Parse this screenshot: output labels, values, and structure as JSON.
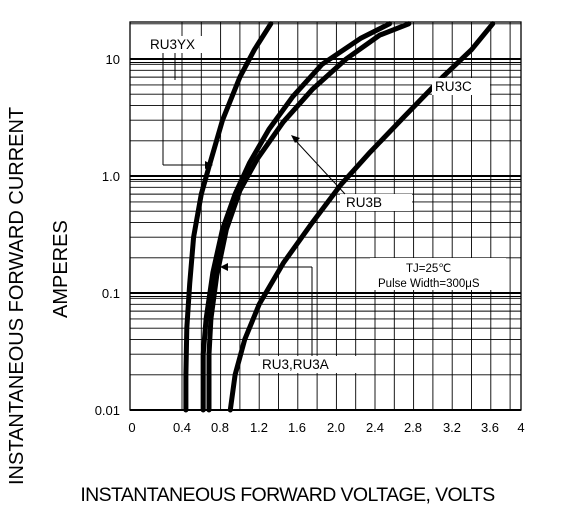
{
  "chart_data": {
    "type": "line",
    "xlabel": "INSTANTANEOUS FORWARD VOLTAGE,  VOLTS",
    "ylabel": [
      "INSTANTANEOUS FORWARD CURRENT",
      "AMPERES"
    ],
    "xlim": [
      0,
      4.0
    ],
    "ylim": [
      0.01,
      20
    ],
    "y_scale": "log",
    "grid": true,
    "x_ticks": [
      "0",
      "0.4",
      "0.8",
      "1.2",
      "1.6",
      "2.0",
      "2.4",
      "2.8",
      "3.2",
      "3.6",
      "4"
    ],
    "y_ticks": [
      "0.01",
      "0.1",
      "1.0",
      "10"
    ],
    "series": [
      {
        "name": "RU3YX",
        "points": [
          [
            0.44,
            0.01
          ],
          [
            0.44,
            0.02
          ],
          [
            0.45,
            0.05
          ],
          [
            0.48,
            0.12
          ],
          [
            0.52,
            0.3
          ],
          [
            0.6,
            0.7
          ],
          [
            0.68,
            1.2
          ],
          [
            0.82,
            3
          ],
          [
            1.0,
            7
          ],
          [
            1.15,
            12
          ],
          [
            1.32,
            20
          ]
        ]
      },
      {
        "name": "RU3,RU3A",
        "points": [
          [
            0.62,
            0.01
          ],
          [
            0.62,
            0.03
          ],
          [
            0.65,
            0.06
          ],
          [
            0.72,
            0.15
          ],
          [
            0.82,
            0.35
          ],
          [
            0.95,
            0.7
          ],
          [
            1.1,
            1.3
          ],
          [
            1.3,
            2.5
          ],
          [
            1.55,
            4.8
          ],
          [
            1.85,
            9
          ],
          [
            2.25,
            15
          ],
          [
            2.55,
            20
          ]
        ]
      },
      {
        "name": "RU3B",
        "points": [
          [
            0.68,
            0.01
          ],
          [
            0.68,
            0.03
          ],
          [
            0.7,
            0.06
          ],
          [
            0.76,
            0.14
          ],
          [
            0.86,
            0.35
          ],
          [
            1.0,
            0.75
          ],
          [
            1.18,
            1.4
          ],
          [
            1.45,
            2.9
          ],
          [
            1.75,
            5.5
          ],
          [
            2.1,
            10
          ],
          [
            2.45,
            16
          ],
          [
            2.75,
            20
          ]
        ]
      },
      {
        "name": "RU3C",
        "points": [
          [
            0.9,
            0.01
          ],
          [
            0.95,
            0.02
          ],
          [
            1.05,
            0.04
          ],
          [
            1.2,
            0.08
          ],
          [
            1.45,
            0.18
          ],
          [
            1.75,
            0.4
          ],
          [
            2.05,
            0.85
          ],
          [
            2.35,
            1.6
          ],
          [
            2.7,
            3.2
          ],
          [
            3.1,
            7
          ],
          [
            3.4,
            12
          ],
          [
            3.62,
            20
          ]
        ]
      }
    ],
    "annotations": [
      "RU3YX",
      "RU3B",
      "RU3C",
      "RU3,RU3A",
      "TJ=25℃",
      "Pulse Width=300μS"
    ]
  }
}
